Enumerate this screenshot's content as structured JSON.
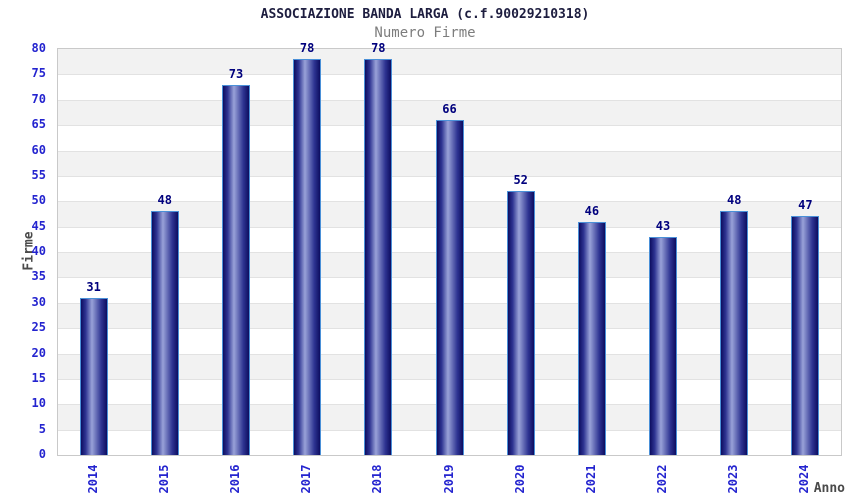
{
  "chart_data": {
    "type": "bar",
    "title": "ASSOCIAZIONE BANDA LARGA (c.f.90029210318)",
    "subtitle": "Numero Firme",
    "xlabel": "Anno",
    "ylabel": "Firme",
    "categories": [
      "2014",
      "2015",
      "2016",
      "2017",
      "2018",
      "2019",
      "2020",
      "2021",
      "2022",
      "2023",
      "2024"
    ],
    "values": [
      31,
      48,
      73,
      78,
      78,
      66,
      52,
      46,
      43,
      48,
      47
    ],
    "ylim": [
      0,
      80
    ],
    "ytick_step": 5,
    "grid": "horizontal gridlines every 5 with alternating gray/white bands",
    "legend": "none"
  },
  "colors": {
    "tick_label_blue": "#2424cf",
    "value_label_navy": "#00007d",
    "bar_dark": "#0d0d60",
    "bar_light": "#99a2d8",
    "bar_border": "#4a90d8",
    "band_gray": "#f2f2f2",
    "gridline": "#e2e2e2",
    "plot_border": "#c9c9c9",
    "title_color": "#1d1d3f",
    "subtitle_gray": "#7d7d7d",
    "axis_title_gray": "#4a4a4a",
    "background": "#ffffff"
  }
}
